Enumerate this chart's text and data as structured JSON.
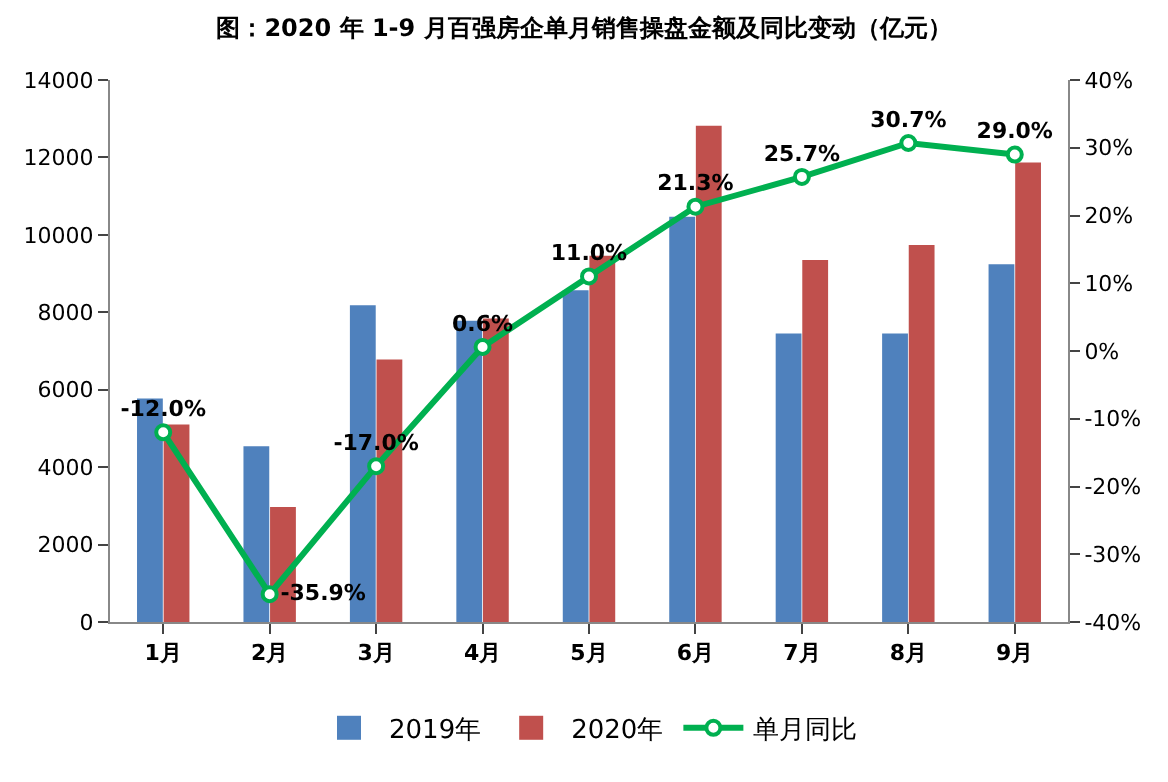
{
  "chart_data": {
    "type": "bar",
    "title": "图：2020 年 1-9 月百强房企单月销售操盘金额及同比变动（亿元）",
    "categories": [
      "1月",
      "2月",
      "3月",
      "4月",
      "5月",
      "6月",
      "7月",
      "8月",
      "9月"
    ],
    "series": [
      {
        "name": "2019年",
        "color": "#4f81bd",
        "values": [
          5770,
          4540,
          8180,
          7780,
          8570,
          10470,
          7450,
          7450,
          9240
        ]
      },
      {
        "name": "2020年",
        "color": "#c0504d",
        "values": [
          5100,
          2970,
          6780,
          7840,
          9460,
          12820,
          9350,
          9740,
          11870
        ]
      },
      {
        "name": "单月同比",
        "type": "line",
        "axis": "y2",
        "color": "#00b050",
        "marker": "circle",
        "values": [
          -12.0,
          -35.9,
          -17.0,
          0.6,
          11.0,
          21.3,
          25.7,
          30.7,
          29.0
        ],
        "value_labels": [
          "-12.0%",
          "-35.9%",
          "-17.0%",
          "0.6%",
          "11.0%",
          "21.3%",
          "25.7%",
          "30.7%",
          "29.0%"
        ]
      }
    ],
    "ylim": [
      0,
      14000
    ],
    "yticks": [
      0,
      2000,
      4000,
      6000,
      8000,
      10000,
      12000,
      14000
    ],
    "y2lim": [
      -40,
      40
    ],
    "y2ticks": [
      {
        "value": -40,
        "label": "-40%"
      },
      {
        "value": -30,
        "label": "-30%"
      },
      {
        "value": -20,
        "label": "-20%"
      },
      {
        "value": -10,
        "label": "-10%"
      },
      {
        "value": 0,
        "label": "0%"
      },
      {
        "value": 10,
        "label": "10%"
      },
      {
        "value": 20,
        "label": "20%"
      },
      {
        "value": 30,
        "label": "30%"
      },
      {
        "value": 40,
        "label": "40%"
      }
    ],
    "grid": false,
    "legend": "bottom"
  }
}
